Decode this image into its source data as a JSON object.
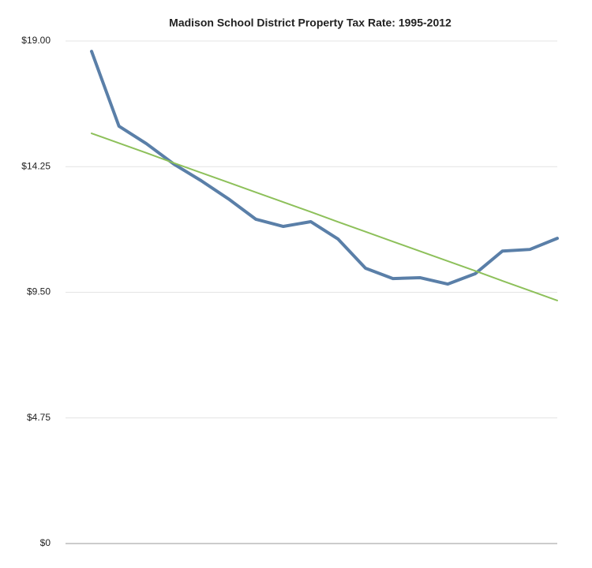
{
  "chart_data": {
    "type": "line",
    "title": "Madison School District Property Tax Rate: 1995-2012",
    "categories": [
      null,
      null,
      null,
      null,
      null,
      null,
      null,
      null,
      null,
      null,
      null,
      null,
      null,
      null,
      null,
      null,
      null,
      null
    ],
    "series": [
      {
        "color": "#5a7fa8",
        "width": 4,
        "values": [
          18.61,
          15.78,
          15.12,
          14.35,
          13.72,
          13.03,
          12.26,
          11.99,
          12.17,
          11.51,
          10.41,
          10.02,
          10.05,
          9.81,
          10.2,
          11.06,
          11.12,
          11.54
        ]
      },
      {
        "color": "#8dc05a",
        "width": 2,
        "values": [
          15.51,
          15.14,
          14.77,
          14.39,
          14.02,
          13.65,
          13.28,
          12.91,
          12.54,
          12.16,
          11.79,
          11.42,
          11.05,
          10.68,
          10.31,
          9.93,
          9.56,
          9.19
        ]
      }
    ],
    "ylim": [
      0,
      19
    ],
    "yticks": [
      {
        "value": 0,
        "label": "$0"
      },
      {
        "value": 4.75,
        "label": "$4.75"
      },
      {
        "value": 9.5,
        "label": "$9.50"
      },
      {
        "value": 14.25,
        "label": "$14.25"
      },
      {
        "value": 19,
        "label": "$19.00"
      }
    ],
    "grid": true
  }
}
